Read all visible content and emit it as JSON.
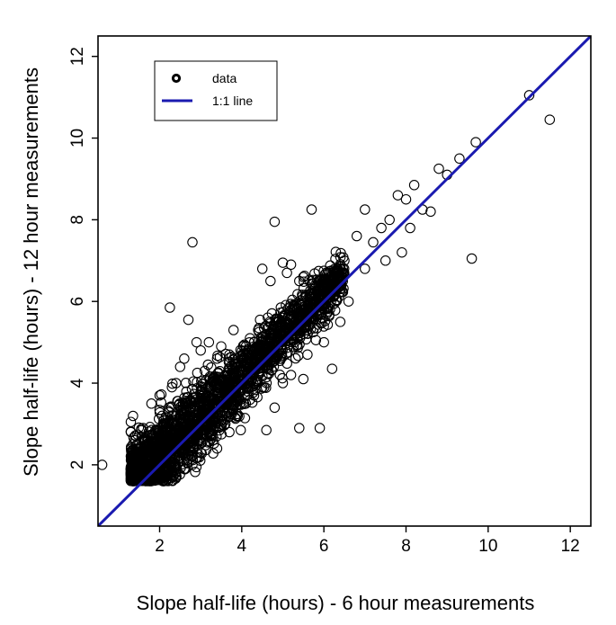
{
  "chart_data": {
    "type": "scatter",
    "title": "",
    "xlabel": "Slope half-life (hours) - 6 hour measurements",
    "ylabel": "Slope half-life (hours) - 12 hour measurements",
    "xlim": [
      0.5,
      12.5
    ],
    "ylim": [
      0.5,
      12.5
    ],
    "xticks": [
      2,
      4,
      6,
      8,
      10,
      12
    ],
    "yticks": [
      2,
      4,
      6,
      8,
      10,
      12
    ],
    "tick_labels_x": [
      "2",
      "4",
      "6",
      "8",
      "10",
      "12"
    ],
    "tick_labels_y": [
      "2",
      "4",
      "6",
      "8",
      "10",
      "12"
    ],
    "grid": false,
    "legend": {
      "position": "top-left",
      "entries": [
        {
          "label": "data",
          "symbol": "open-circle",
          "color": "#000000"
        },
        {
          "label": "1:1 line",
          "symbol": "line",
          "color": "#1a1ab0"
        }
      ]
    },
    "reference_line": {
      "label": "1:1 line",
      "slope": 1,
      "intercept": 0,
      "color": "#1a1ab0"
    },
    "series": [
      {
        "label": "data",
        "color": "#000000",
        "points": [
          [
            0.6,
            2.0
          ],
          [
            1.3,
            2.8
          ],
          [
            1.3,
            3.05
          ],
          [
            1.5,
            1.8
          ],
          [
            1.6,
            2.9
          ],
          [
            1.8,
            3.5
          ],
          [
            1.9,
            2.4
          ],
          [
            2.0,
            3.7
          ],
          [
            2.1,
            3.0
          ],
          [
            2.2,
            2.6
          ],
          [
            2.25,
            5.85
          ],
          [
            2.3,
            3.9
          ],
          [
            2.4,
            4.0
          ],
          [
            2.5,
            4.4
          ],
          [
            2.6,
            4.6
          ],
          [
            2.7,
            5.55
          ],
          [
            2.8,
            7.45
          ],
          [
            2.8,
            2.2
          ],
          [
            2.9,
            5.0
          ],
          [
            3.0,
            4.8
          ],
          [
            3.1,
            4.3
          ],
          [
            3.2,
            5.0
          ],
          [
            3.3,
            4.0
          ],
          [
            3.4,
            4.6
          ],
          [
            3.5,
            4.9
          ],
          [
            3.6,
            4.2
          ],
          [
            3.7,
            4.7
          ],
          [
            3.8,
            5.3
          ],
          [
            3.9,
            4.6
          ],
          [
            4.0,
            4.3
          ],
          [
            4.1,
            4.9
          ],
          [
            4.2,
            5.1
          ],
          [
            4.3,
            5.0
          ],
          [
            4.4,
            5.3
          ],
          [
            4.5,
            6.8
          ],
          [
            4.6,
            5.2
          ],
          [
            4.7,
            6.5
          ],
          [
            4.8,
            7.95
          ],
          [
            4.9,
            5.5
          ],
          [
            5.0,
            6.95
          ],
          [
            5.1,
            6.7
          ],
          [
            5.2,
            6.9
          ],
          [
            5.3,
            5.9
          ],
          [
            5.4,
            6.5
          ],
          [
            5.5,
            6.6
          ],
          [
            5.7,
            8.25
          ],
          [
            5.8,
            6.0
          ],
          [
            5.9,
            6.5
          ],
          [
            6.0,
            6.75
          ],
          [
            6.2,
            6.3
          ],
          [
            6.5,
            7.0
          ],
          [
            6.8,
            7.6
          ],
          [
            7.0,
            8.25
          ],
          [
            7.2,
            7.45
          ],
          [
            7.4,
            7.8
          ],
          [
            7.6,
            8.0
          ],
          [
            7.8,
            8.6
          ],
          [
            8.0,
            8.5
          ],
          [
            8.2,
            8.85
          ],
          [
            8.4,
            8.25
          ],
          [
            8.6,
            8.2
          ],
          [
            8.8,
            9.25
          ],
          [
            9.0,
            9.1
          ],
          [
            9.3,
            9.5
          ],
          [
            9.6,
            7.05
          ],
          [
            9.7,
            9.9
          ],
          [
            11.0,
            11.05
          ],
          [
            11.5,
            10.45
          ],
          [
            3.9,
            3.2
          ],
          [
            4.1,
            3.5
          ],
          [
            4.3,
            3.7
          ],
          [
            4.5,
            3.9
          ],
          [
            4.6,
            2.85
          ],
          [
            4.8,
            3.4
          ],
          [
            5.0,
            4.0
          ],
          [
            5.2,
            4.2
          ],
          [
            5.4,
            2.9
          ],
          [
            5.5,
            4.1
          ],
          [
            5.6,
            4.7
          ],
          [
            5.9,
            2.9
          ],
          [
            6.0,
            5.0
          ],
          [
            6.2,
            4.35
          ],
          [
            6.4,
            5.5
          ],
          [
            6.6,
            6.0
          ],
          [
            7.0,
            6.8
          ],
          [
            7.5,
            7.0
          ],
          [
            7.9,
            7.2
          ],
          [
            8.1,
            7.8
          ],
          [
            3.3,
            2.6
          ],
          [
            3.6,
            3.0
          ],
          [
            2.8,
            2.0
          ],
          [
            3.0,
            2.3
          ],
          [
            2.4,
            1.8
          ],
          [
            2.6,
            1.9
          ],
          [
            2.0,
            1.7
          ],
          [
            1.7,
            1.75
          ],
          [
            3.4,
            2.4
          ],
          [
            3.7,
            2.8
          ]
        ],
        "dense_core": {
          "x_range": [
            1.3,
            6.5
          ],
          "trend": "approximately along the 1:1 line",
          "y_spread_around_trend": 0.5
        }
      }
    ]
  }
}
